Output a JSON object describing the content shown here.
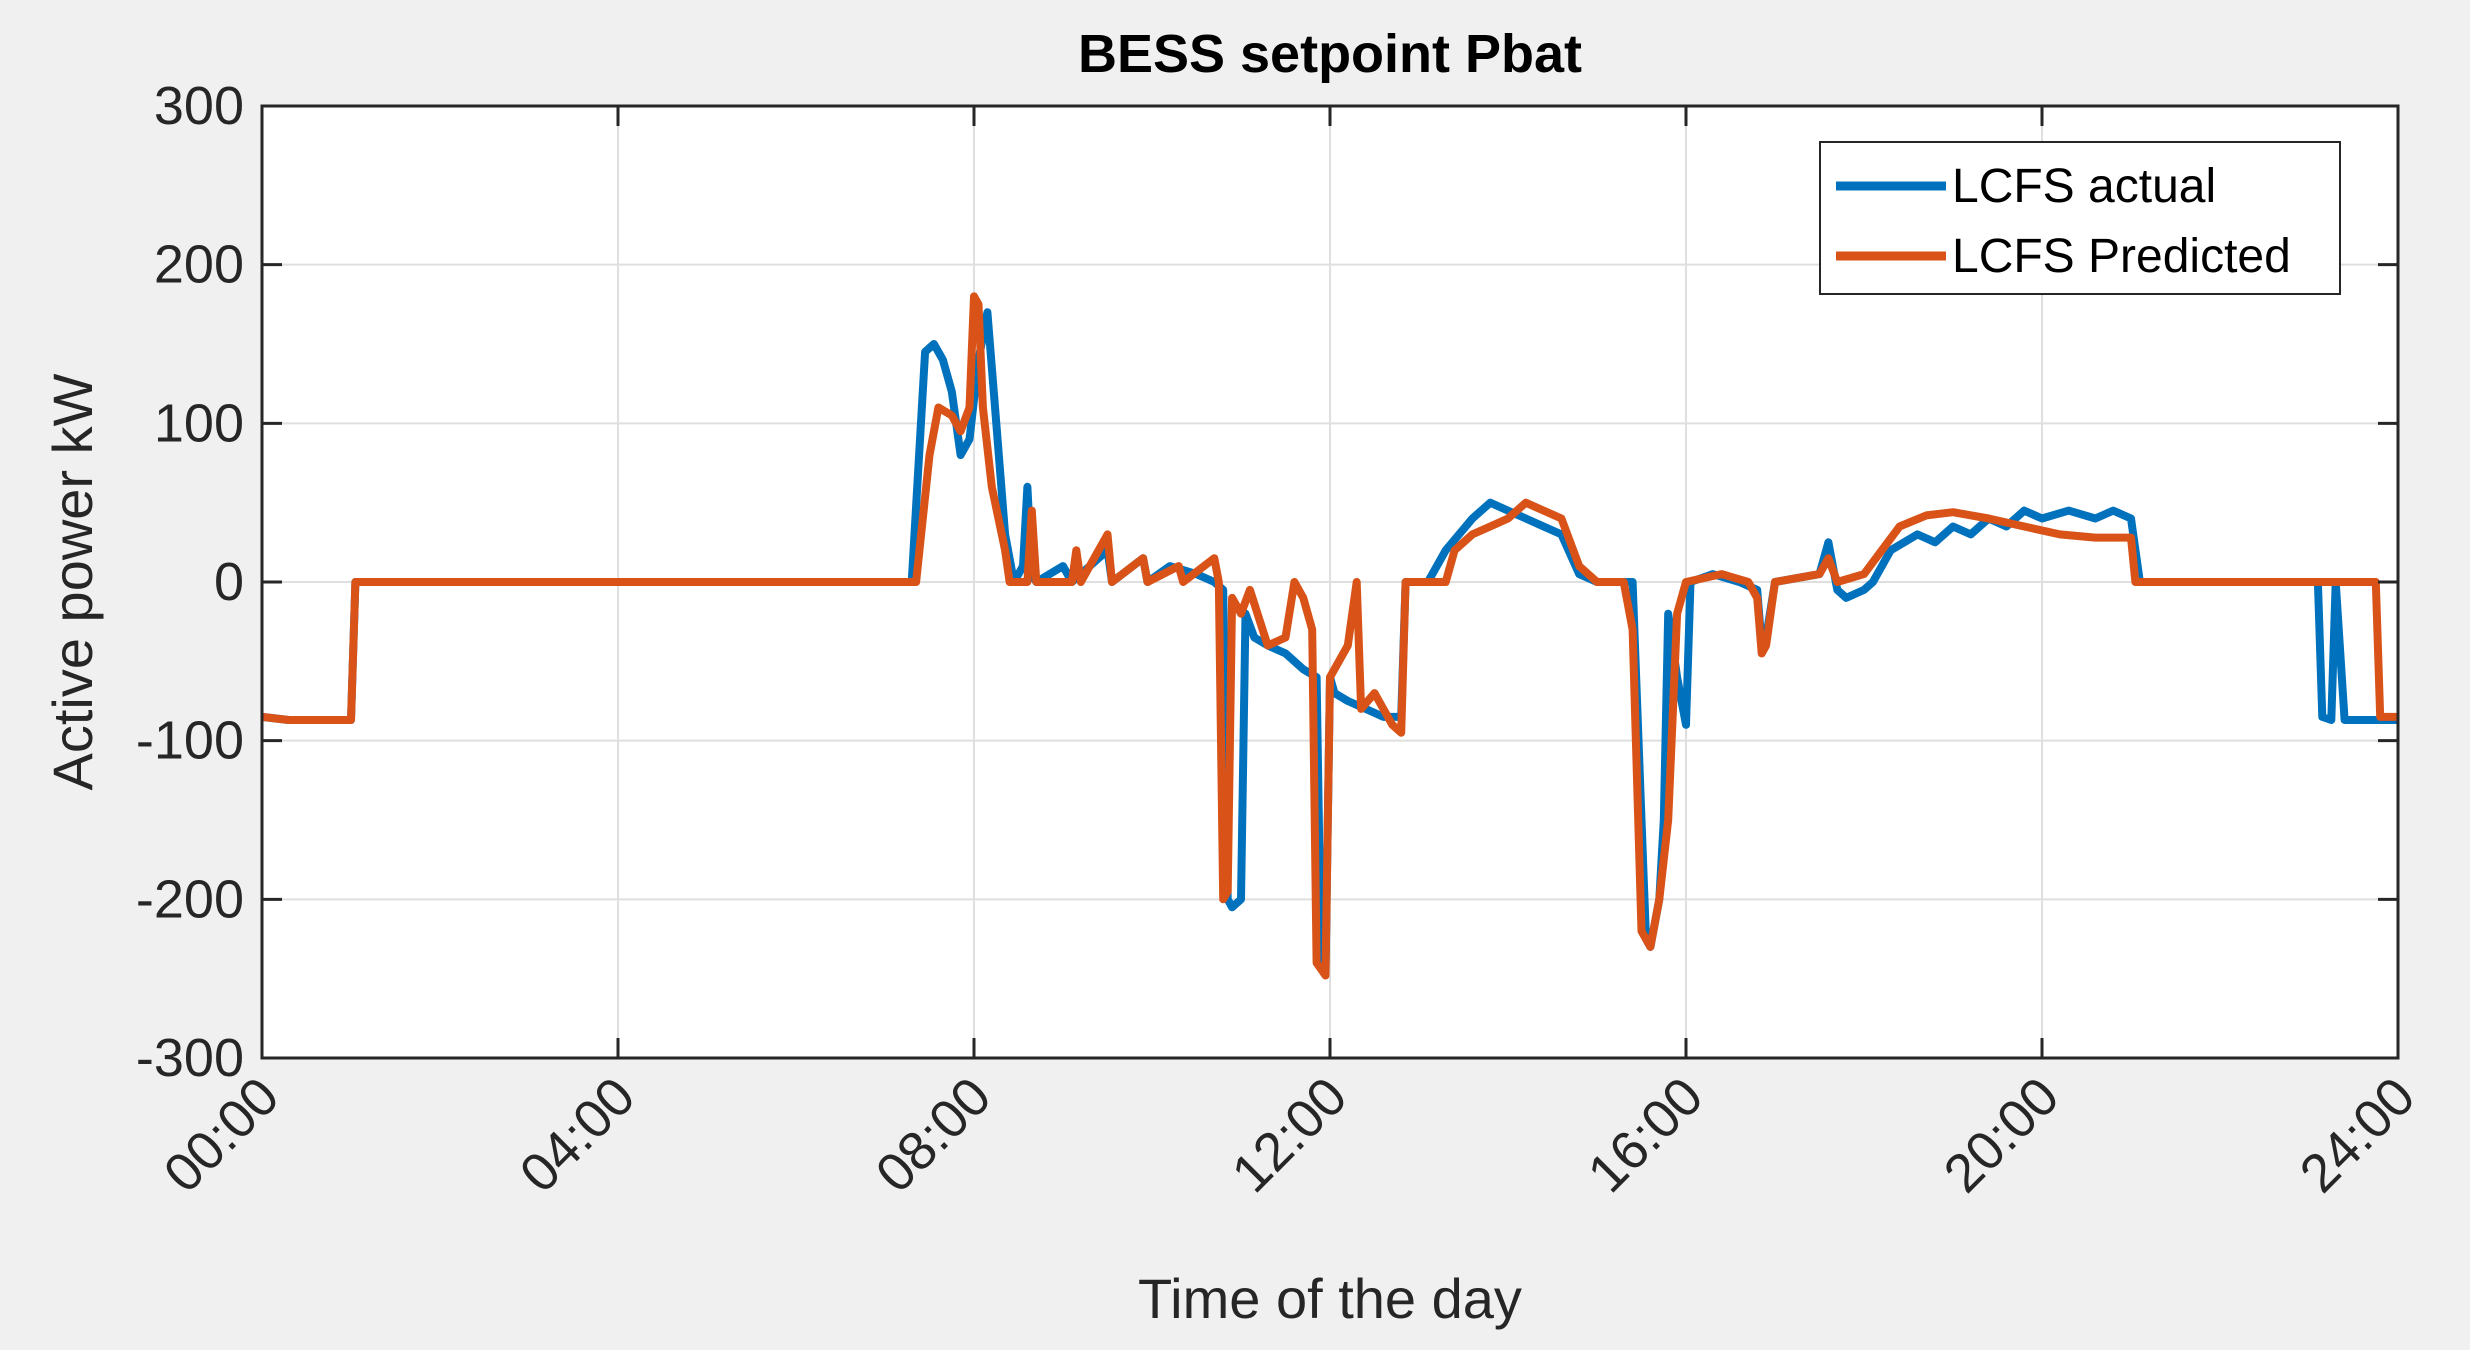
{
  "chart_data": {
    "type": "line",
    "title": "BESS setpoint Pbat",
    "xlabel": "Time of the day",
    "ylabel": "Active power kW",
    "xlim": [
      0,
      24
    ],
    "ylim": [
      -300,
      300
    ],
    "x_ticks": [
      "00:00",
      "04:00",
      "08:00",
      "12:00",
      "16:00",
      "20:00",
      "24:00"
    ],
    "y_ticks": [
      "300",
      "200",
      "100",
      "0",
      "-100",
      "-200",
      "-300"
    ],
    "grid": true,
    "legend_position": "top-right",
    "series": [
      {
        "name": "LCFS actual",
        "color": "#0072BD",
        "points": [
          [
            0,
            -85
          ],
          [
            0.3,
            -87
          ],
          [
            1,
            -87
          ],
          [
            1.05,
            0
          ],
          [
            7.3,
            0
          ],
          [
            7.45,
            145
          ],
          [
            7.55,
            150
          ],
          [
            7.65,
            140
          ],
          [
            7.75,
            120
          ],
          [
            7.85,
            80
          ],
          [
            7.95,
            90
          ],
          [
            8.05,
            140
          ],
          [
            8.15,
            170
          ],
          [
            8.25,
            100
          ],
          [
            8.35,
            30
          ],
          [
            8.45,
            0
          ],
          [
            8.55,
            10
          ],
          [
            8.6,
            60
          ],
          [
            8.65,
            5
          ],
          [
            8.7,
            0
          ],
          [
            9.0,
            10
          ],
          [
            9.1,
            0
          ],
          [
            9.5,
            20
          ],
          [
            9.55,
            0
          ],
          [
            9.9,
            15
          ],
          [
            9.95,
            0
          ],
          [
            10.2,
            10
          ],
          [
            10.5,
            5
          ],
          [
            10.7,
            0
          ],
          [
            10.8,
            -5
          ],
          [
            10.85,
            -200
          ],
          [
            10.9,
            -205
          ],
          [
            11.0,
            -200
          ],
          [
            11.05,
            -20
          ],
          [
            11.15,
            -35
          ],
          [
            11.3,
            -40
          ],
          [
            11.5,
            -45
          ],
          [
            11.7,
            -55
          ],
          [
            11.85,
            -60
          ],
          [
            11.9,
            -240
          ],
          [
            11.95,
            -245
          ],
          [
            12.0,
            -60
          ],
          [
            12.05,
            -70
          ],
          [
            12.2,
            -75
          ],
          [
            12.4,
            -80
          ],
          [
            12.6,
            -85
          ],
          [
            12.8,
            -85
          ],
          [
            12.85,
            0
          ],
          [
            13.1,
            0
          ],
          [
            13.3,
            20
          ],
          [
            13.6,
            40
          ],
          [
            13.8,
            50
          ],
          [
            14.0,
            45
          ],
          [
            14.2,
            40
          ],
          [
            14.4,
            35
          ],
          [
            14.6,
            30
          ],
          [
            14.8,
            5
          ],
          [
            15.0,
            0
          ],
          [
            15.4,
            0
          ],
          [
            15.5,
            -150
          ],
          [
            15.55,
            -225
          ],
          [
            15.6,
            -230
          ],
          [
            15.7,
            -200
          ],
          [
            15.75,
            -150
          ],
          [
            15.8,
            -20
          ],
          [
            15.9,
            -60
          ],
          [
            16.0,
            -90
          ],
          [
            16.05,
            0
          ],
          [
            16.3,
            5
          ],
          [
            16.6,
            0
          ],
          [
            16.8,
            -5
          ],
          [
            16.85,
            -40
          ],
          [
            16.9,
            -35
          ],
          [
            17.0,
            0
          ],
          [
            17.5,
            5
          ],
          [
            17.6,
            25
          ],
          [
            17.7,
            -5
          ],
          [
            17.8,
            -10
          ],
          [
            18.0,
            -5
          ],
          [
            18.1,
            0
          ],
          [
            18.3,
            20
          ],
          [
            18.6,
            30
          ],
          [
            18.8,
            25
          ],
          [
            19.0,
            35
          ],
          [
            19.2,
            30
          ],
          [
            19.4,
            40
          ],
          [
            19.6,
            35
          ],
          [
            19.8,
            45
          ],
          [
            20.0,
            40
          ],
          [
            20.3,
            45
          ],
          [
            20.6,
            40
          ],
          [
            20.8,
            45
          ],
          [
            21.0,
            40
          ],
          [
            21.1,
            0
          ],
          [
            23.1,
            0
          ],
          [
            23.15,
            -85
          ],
          [
            23.25,
            -87
          ],
          [
            23.3,
            0
          ],
          [
            23.4,
            -87
          ],
          [
            24,
            -87
          ]
        ]
      },
      {
        "name": "LCFS Predicted",
        "color": "#D95319",
        "points": [
          [
            0,
            -85
          ],
          [
            0.3,
            -87
          ],
          [
            1,
            -87
          ],
          [
            1.05,
            0
          ],
          [
            7.35,
            0
          ],
          [
            7.5,
            80
          ],
          [
            7.6,
            110
          ],
          [
            7.75,
            105
          ],
          [
            7.85,
            95
          ],
          [
            7.95,
            110
          ],
          [
            8.0,
            180
          ],
          [
            8.05,
            175
          ],
          [
            8.1,
            110
          ],
          [
            8.2,
            60
          ],
          [
            8.35,
            20
          ],
          [
            8.4,
            0
          ],
          [
            8.6,
            0
          ],
          [
            8.65,
            45
          ],
          [
            8.7,
            0
          ],
          [
            9.1,
            0
          ],
          [
            9.15,
            20
          ],
          [
            9.2,
            0
          ],
          [
            9.5,
            30
          ],
          [
            9.55,
            0
          ],
          [
            9.9,
            15
          ],
          [
            9.95,
            0
          ],
          [
            10.3,
            10
          ],
          [
            10.35,
            0
          ],
          [
            10.7,
            15
          ],
          [
            10.75,
            0
          ],
          [
            10.8,
            -200
          ],
          [
            10.85,
            -195
          ],
          [
            10.9,
            -10
          ],
          [
            11.0,
            -20
          ],
          [
            11.1,
            -5
          ],
          [
            11.3,
            -40
          ],
          [
            11.5,
            -35
          ],
          [
            11.6,
            0
          ],
          [
            11.7,
            -10
          ],
          [
            11.8,
            -30
          ],
          [
            11.85,
            -240
          ],
          [
            11.95,
            -248
          ],
          [
            12.0,
            -60
          ],
          [
            12.2,
            -40
          ],
          [
            12.3,
            0
          ],
          [
            12.35,
            -80
          ],
          [
            12.5,
            -70
          ],
          [
            12.7,
            -90
          ],
          [
            12.8,
            -95
          ],
          [
            12.85,
            0
          ],
          [
            13.3,
            0
          ],
          [
            13.4,
            20
          ],
          [
            13.6,
            30
          ],
          [
            13.8,
            35
          ],
          [
            14.0,
            40
          ],
          [
            14.2,
            50
          ],
          [
            14.4,
            45
          ],
          [
            14.6,
            40
          ],
          [
            14.8,
            10
          ],
          [
            15.0,
            0
          ],
          [
            15.3,
            0
          ],
          [
            15.4,
            -30
          ],
          [
            15.5,
            -220
          ],
          [
            15.6,
            -230
          ],
          [
            15.7,
            -200
          ],
          [
            15.8,
            -150
          ],
          [
            15.9,
            -20
          ],
          [
            16.0,
            0
          ],
          [
            16.4,
            5
          ],
          [
            16.7,
            0
          ],
          [
            16.8,
            -10
          ],
          [
            16.85,
            -45
          ],
          [
            16.9,
            -40
          ],
          [
            17.0,
            0
          ],
          [
            17.5,
            5
          ],
          [
            17.6,
            15
          ],
          [
            17.7,
            0
          ],
          [
            18.0,
            5
          ],
          [
            18.2,
            20
          ],
          [
            18.4,
            35
          ],
          [
            18.7,
            42
          ],
          [
            19.0,
            44
          ],
          [
            19.4,
            40
          ],
          [
            19.8,
            35
          ],
          [
            20.2,
            30
          ],
          [
            20.6,
            28
          ],
          [
            21.0,
            28
          ],
          [
            21.05,
            0
          ],
          [
            23.75,
            0
          ],
          [
            23.8,
            -85
          ],
          [
            24,
            -85
          ]
        ]
      }
    ]
  }
}
